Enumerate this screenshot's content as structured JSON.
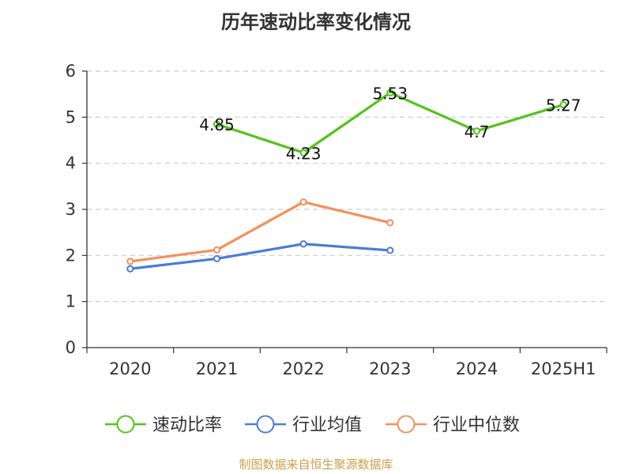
{
  "chart_data": {
    "type": "line",
    "title": "历年速动比率变化情况",
    "categories": [
      "2020",
      "2021",
      "2022",
      "2023",
      "2024",
      "2025H1"
    ],
    "ylim": [
      0,
      6
    ],
    "yticks": [
      0,
      1,
      2,
      3,
      4,
      5,
      6
    ],
    "grid": true,
    "legend_position": "bottom",
    "series": [
      {
        "name": "速动比率",
        "color": "#52c41a",
        "values": [
          null,
          4.85,
          4.23,
          5.53,
          4.7,
          5.27
        ],
        "show_labels": true
      },
      {
        "name": "行业均值",
        "color": "#4a7bd8",
        "values": [
          1.71,
          1.93,
          2.25,
          2.11,
          null,
          null
        ],
        "show_labels": false
      },
      {
        "name": "行业中位数",
        "color": "#f4915a",
        "values": [
          1.87,
          2.12,
          3.16,
          2.71,
          null,
          null
        ],
        "show_labels": false
      }
    ]
  },
  "source": "制图数据来自恒生聚源数据库"
}
